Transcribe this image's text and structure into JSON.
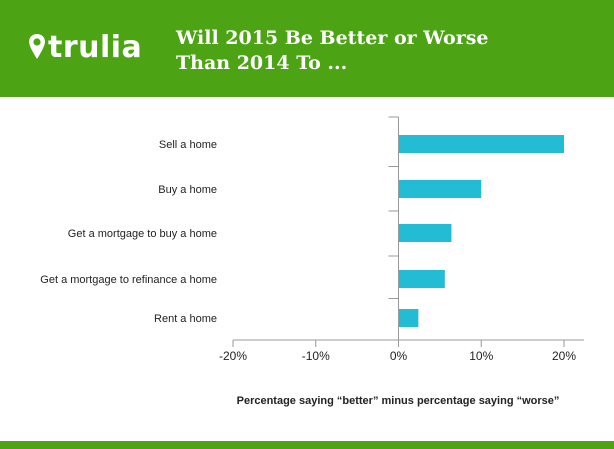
{
  "header": {
    "logo_text": "trulia",
    "title_line1": "Will 2015 Be Better or Worse",
    "title_line2": "Than 2014 To ..."
  },
  "colors": {
    "brand_green": "#4ca414",
    "bar": "#22bcd4",
    "axis": "#999999"
  },
  "icons": {
    "logo": "map-pin-icon"
  },
  "chart_data": {
    "type": "bar",
    "orientation": "horizontal",
    "categories": [
      "Sell a home",
      "Buy a home",
      "Get a mortgage to buy a home",
      "Get a mortgage to refinance a home",
      "Rent a home"
    ],
    "values": [
      20,
      10,
      6.4,
      5.6,
      2.4
    ],
    "xlim": [
      -20,
      20
    ],
    "ticks": [
      "-20%",
      "-10%",
      "0%",
      "10%",
      "20%"
    ],
    "tick_values": [
      -20,
      -10,
      0,
      10,
      20
    ],
    "xlabel": "Percentage saying “better” minus percentage saying “worse”",
    "grid": false
  }
}
